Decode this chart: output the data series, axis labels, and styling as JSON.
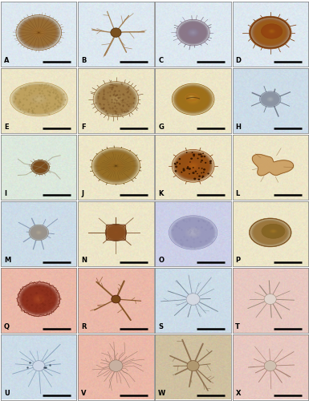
{
  "figure_width": 3.85,
  "figure_height": 5.0,
  "dpi": 100,
  "n_cols": 4,
  "n_rows": 6,
  "labels": [
    "A",
    "B",
    "C",
    "D",
    "E",
    "F",
    "G",
    "H",
    "I",
    "J",
    "K",
    "L",
    "M",
    "N",
    "O",
    "P",
    "Q",
    "R",
    "S",
    "T",
    "U",
    "V",
    "W",
    "X"
  ],
  "row_bg": [
    [
      "#dde8f0",
      "#dde8f0",
      "#dde8f0",
      "#dde8f0"
    ],
    [
      "#ede6c8",
      "#ede6c8",
      "#ede6c8",
      "#ccdce8"
    ],
    [
      "#dce8dc",
      "#ede6c8",
      "#ede6c8",
      "#ede6c8"
    ],
    [
      "#ccdce8",
      "#ede6c8",
      "#ccd0e8",
      "#ede6c8"
    ],
    [
      "#ebb8a8",
      "#ebb8a8",
      "#ccdce8",
      "#e8c8c0"
    ],
    [
      "#ccdce8",
      "#ebb8a8",
      "#cfc0a0",
      "#e8c8c0"
    ]
  ],
  "label_fontsize": 6,
  "label_color": "#000000",
  "scalebar_color": "#000000",
  "scalebar_lw": 1.8
}
